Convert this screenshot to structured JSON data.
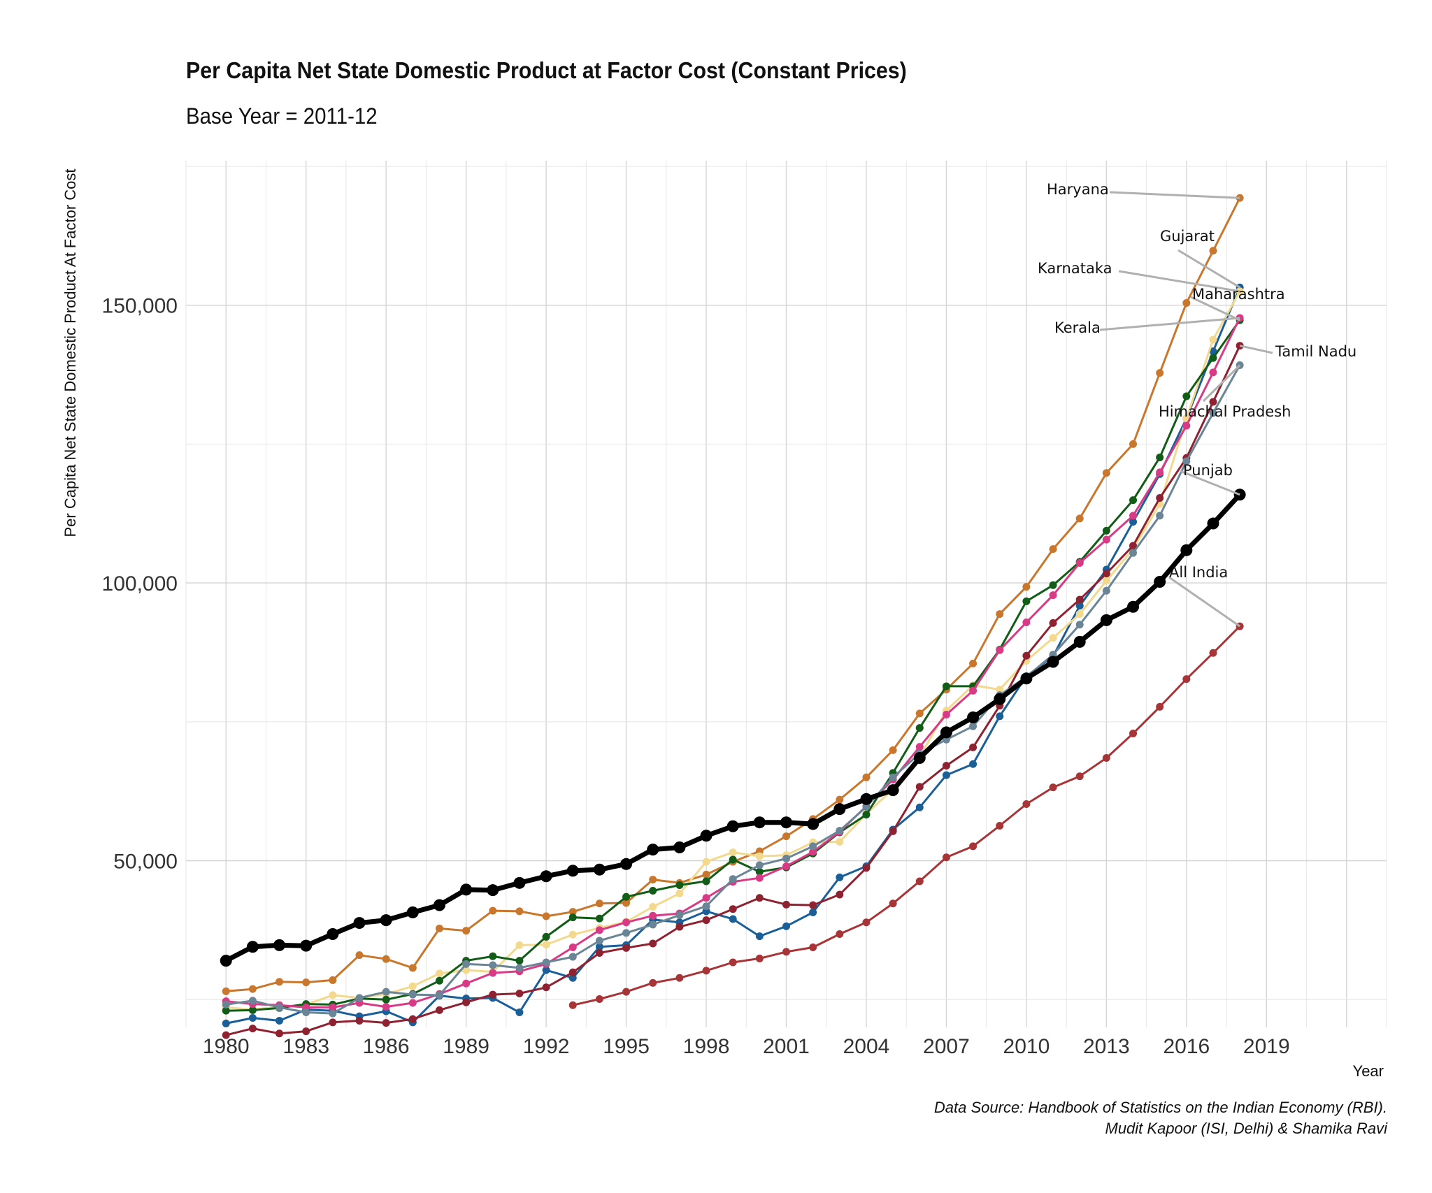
{
  "chart_data": {
    "type": "line",
    "title": "Per Capita Net State Domestic Product at Factor Cost (Constant Prices)",
    "subtitle": "Base Year = 2011-12",
    "xlabel": "Year",
    "ylabel": "Per Capita Net State Domestic Product At Factor Cost",
    "xlim": [
      1978.5,
      2023.5
    ],
    "ylim": [
      20000,
      176000
    ],
    "x_ticks": [
      1980,
      1983,
      1986,
      1989,
      1992,
      1995,
      1998,
      2001,
      2004,
      2007,
      2010,
      2013,
      2016,
      2019
    ],
    "y_ticks": [
      50000,
      100000,
      150000
    ],
    "y_tick_labels": [
      "50,000",
      "100,000",
      "150,000"
    ],
    "grid": true,
    "legend": "none",
    "x": [
      1980,
      1981,
      1982,
      1983,
      1984,
      1985,
      1986,
      1987,
      1988,
      1989,
      1990,
      1991,
      1992,
      1993,
      1994,
      1995,
      1996,
      1997,
      1998,
      1999,
      2000,
      2001,
      2002,
      2003,
      2004,
      2005,
      2006,
      2007,
      2008,
      2009,
      2010,
      2011,
      2012,
      2013,
      2014,
      2015,
      2016,
      2017,
      2018
    ],
    "series": [
      {
        "name": "Punjab",
        "color": "#000000",
        "values": [
          32000,
          34500,
          34800,
          34700,
          36800,
          38800,
          39300,
          40700,
          42000,
          44800,
          44700,
          46000,
          47200,
          48200,
          48400,
          49400,
          52000,
          52400,
          54500,
          56200,
          56900,
          56900,
          56600,
          59300,
          61100,
          62700,
          68500,
          73100,
          75800,
          79100,
          82800,
          85800,
          89400,
          93300,
          95700,
          100200,
          105900,
          110700,
          115900
        ]
      },
      {
        "name": "Haryana",
        "color": "#c8772c",
        "values": [
          26500,
          26900,
          28200,
          28100,
          28500,
          33000,
          32300,
          30700,
          37800,
          37400,
          41000,
          40900,
          40000,
          40800,
          42300,
          42400,
          46600,
          46000,
          47500,
          49800,
          51700,
          54400,
          57500,
          61000,
          65000,
          69900,
          76500,
          80800,
          85500,
          94400,
          99300,
          106100,
          111600,
          119800,
          125000,
          137800,
          150400,
          159800,
          169300
        ]
      },
      {
        "name": "Gujarat",
        "color": "#1a5f98",
        "values": [
          20700,
          21700,
          21200,
          23200,
          23000,
          22000,
          22900,
          20900,
          25700,
          25200,
          25300,
          22700,
          30300,
          28900,
          34500,
          34800,
          39400,
          38900,
          40900,
          39500,
          36400,
          38200,
          40700,
          47000,
          49000,
          55600,
          59600,
          65400,
          67400,
          76000,
          83200,
          86800,
          95900,
          102400,
          111000,
          119600,
          129600,
          141700,
          153200
        ]
      },
      {
        "name": "Karnataka",
        "color": "#f2d98e",
        "values": [
          23600,
          23200,
          23700,
          24100,
          25800,
          25300,
          26000,
          27400,
          29700,
          30300,
          30000,
          34800,
          34900,
          36700,
          37900,
          39000,
          41700,
          44100,
          49800,
          51500,
          50800,
          51000,
          53300,
          53400,
          58400,
          62900,
          68700,
          77000,
          81600,
          80800,
          86000,
          90100,
          94400,
          100400,
          106100,
          114200,
          129600,
          143800,
          152500
        ]
      },
      {
        "name": "Maharashtra",
        "color": "#115c16",
        "values": [
          23000,
          23100,
          23500,
          24200,
          24100,
          25200,
          25000,
          26000,
          28400,
          32000,
          32800,
          32000,
          36300,
          39800,
          39600,
          43500,
          44600,
          45600,
          46300,
          50200,
          48000,
          48800,
          51300,
          55100,
          58300,
          65800,
          73900,
          81400,
          81400,
          88000,
          96700,
          99600,
          103800,
          109400,
          114900,
          122600,
          133600,
          140500,
          147300
        ]
      },
      {
        "name": "Kerala",
        "color": "#d83a85",
        "values": [
          24700,
          24200,
          24000,
          23600,
          23600,
          24400,
          23700,
          24400,
          26000,
          27900,
          29800,
          30100,
          31400,
          34400,
          37500,
          38900,
          40100,
          40500,
          43300,
          46200,
          46900,
          49000,
          51600,
          55200,
          59800,
          64600,
          70500,
          76300,
          80600,
          87900,
          92900,
          97800,
          103600,
          107800,
          112100,
          119900,
          128300,
          137900,
          147700
        ]
      },
      {
        "name": "Tamil Nadu",
        "color": "#8e2230",
        "values": [
          18600,
          19800,
          18900,
          19300,
          20900,
          21200,
          20800,
          21500,
          23100,
          24500,
          25900,
          26100,
          27200,
          29900,
          33400,
          34300,
          35100,
          38100,
          39300,
          41300,
          43300,
          42100,
          42000,
          43900,
          48700,
          55300,
          63300,
          67100,
          70400,
          77900,
          86900,
          92800,
          97000,
          101700,
          106700,
          115300,
          122500,
          132600,
          142700
        ]
      },
      {
        "name": "Himachal Pradesh",
        "color": "#6a8595",
        "values": [
          24100,
          24800,
          23600,
          22700,
          22500,
          25300,
          26400,
          25900,
          25800,
          31400,
          31200,
          30700,
          31700,
          32700,
          35600,
          37000,
          38500,
          40200,
          41800,
          46700,
          49200,
          50400,
          52600,
          55400,
          59700,
          65000,
          69300,
          71800,
          74200,
          79800,
          83100,
          87100,
          92500,
          98600,
          105400,
          112100,
          121900,
          130600,
          139200
        ]
      },
      {
        "name": "All India",
        "color": "#a73436",
        "x": [
          1993,
          1994,
          1995,
          1996,
          1997,
          1998,
          1999,
          2000,
          2001,
          2002,
          2003,
          2004,
          2005,
          2006,
          2007,
          2008,
          2009,
          2010,
          2011,
          2012,
          2013,
          2014,
          2015,
          2016,
          2017,
          2018
        ],
        "values": [
          24000,
          25100,
          26400,
          28000,
          28900,
          30200,
          31700,
          32400,
          33600,
          34400,
          36800,
          38900,
          42300,
          46300,
          50600,
          52600,
          56300,
          60200,
          63200,
          65200,
          68500,
          72900,
          77700,
          82700,
          87400,
          92200
        ]
      }
    ],
    "annotations": [
      {
        "text": "Haryana",
        "series": "Haryana"
      },
      {
        "text": "Gujarat",
        "series": "Gujarat"
      },
      {
        "text": "Karnataka",
        "series": "Karnataka"
      },
      {
        "text": "Maharashtra",
        "series": "Maharashtra"
      },
      {
        "text": "Kerala",
        "series": "Kerala"
      },
      {
        "text": "Tamil Nadu",
        "series": "Tamil Nadu"
      },
      {
        "text": "Himachal Pradesh",
        "series": "Himachal Pradesh"
      },
      {
        "text": "Punjab",
        "series": "Punjab"
      },
      {
        "text": "All India",
        "series": "All India"
      }
    ],
    "caption": [
      "Data Source: Handbook of Statistics on the Indian Economy (RBI).",
      "Mudit Kapoor (ISI, Delhi) & Shamika Ravi"
    ]
  }
}
